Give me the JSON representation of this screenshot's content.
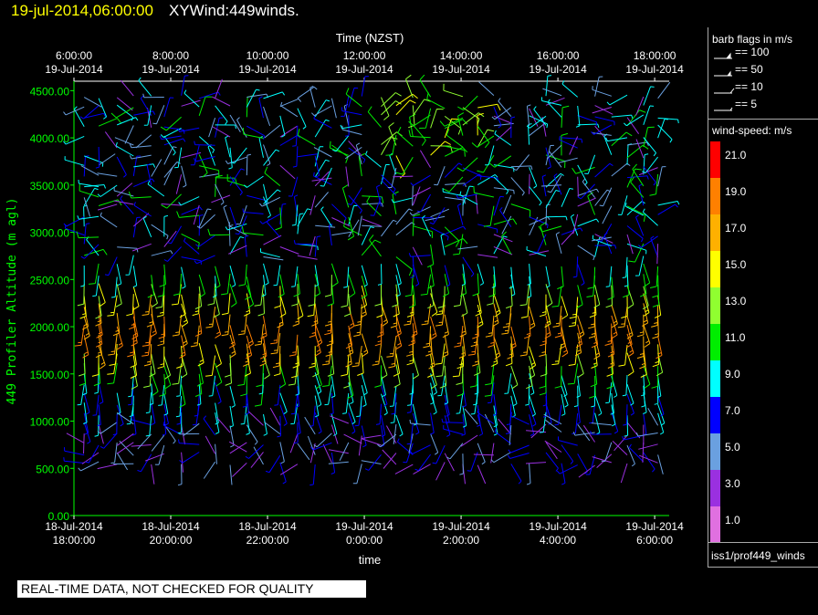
{
  "header": {
    "datetime": "19-jul-2014,06:00:00",
    "title": "XYWind:449winds."
  },
  "quality_banner": "REAL-TIME DATA, NOT CHECKED FOR QUALITY",
  "legend": {
    "barb_title": "barb flags in m/s",
    "barbs": [
      "== 100",
      "== 50",
      "== 10",
      "== 5"
    ],
    "speed_title": "wind-speed: m/s",
    "color_scale": [
      {
        "label": "21.0",
        "color": "#ff0000"
      },
      {
        "label": "19.0",
        "color": "#ff8000"
      },
      {
        "label": "17.0",
        "color": "#ffb000"
      },
      {
        "label": "15.0",
        "color": "#ffff00"
      },
      {
        "label": "13.0",
        "color": "#90ff30"
      },
      {
        "label": "11.0",
        "color": "#00ee00"
      },
      {
        "label": "9.0",
        "color": "#00ffff"
      },
      {
        "label": "7.0",
        "color": "#0000ff"
      },
      {
        "label": "5.0",
        "color": "#6aa0e0"
      },
      {
        "label": "3.0",
        "color": "#9a30e0"
      },
      {
        "label": "1.0",
        "color": "#e070e0"
      }
    ],
    "source": "iss1/prof449_winds"
  },
  "chart_data": {
    "type": "wind-barb",
    "top_axis_label": "Time (NZST)",
    "top_ticks": [
      [
        "6:00:00",
        "19-Jul-2014"
      ],
      [
        "8:00:00",
        "19-Jul-2014"
      ],
      [
        "10:00:00",
        "19-Jul-2014"
      ],
      [
        "12:00:00",
        "19-Jul-2014"
      ],
      [
        "14:00:00",
        "19-Jul-2014"
      ],
      [
        "16:00:00",
        "19-Jul-2014"
      ],
      [
        "18:00:00",
        "19-Jul-2014"
      ]
    ],
    "bottom_axis_label": "time",
    "bottom_ticks": [
      [
        "18-Jul-2014",
        "18:00:00"
      ],
      [
        "18-Jul-2014",
        "20:00:00"
      ],
      [
        "18-Jul-2014",
        "22:00:00"
      ],
      [
        "19-Jul-2014",
        "0:00:00"
      ],
      [
        "19-Jul-2014",
        "2:00:00"
      ],
      [
        "19-Jul-2014",
        "4:00:00"
      ],
      [
        "19-Jul-2014",
        "6:00:00"
      ]
    ],
    "ylabel": "449 Profiler Altitude (m agl)",
    "yticks": [
      "0.00",
      "500.00",
      "1000.00",
      "1500.00",
      "2000.00",
      "2500.00",
      "3000.00",
      "3500.00",
      "4000.00",
      "4500.00"
    ],
    "ylim": [
      0,
      4600
    ],
    "xlim_hours_utc": [
      18.0,
      30.3
    ],
    "axis_color": "#00ff00"
  }
}
